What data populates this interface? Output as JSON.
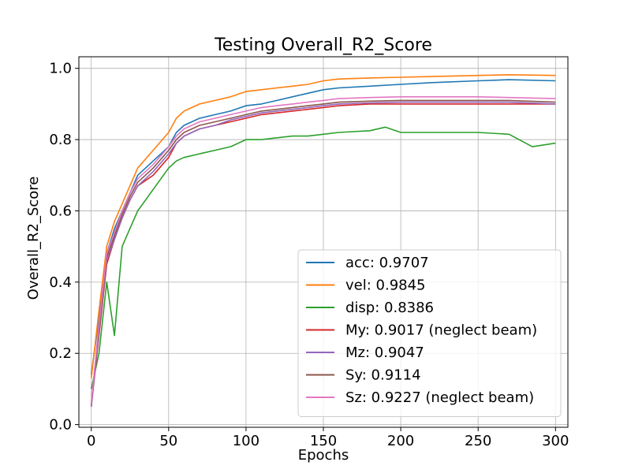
{
  "chart_data": {
    "type": "line",
    "title": "Testing Overall_R2_Score",
    "xlabel": "Epochs",
    "ylabel": "Overall_R2_Score",
    "xlim": [
      -8,
      308
    ],
    "ylim": [
      -0.0075,
      1.0325
    ],
    "xticks": [
      0,
      50,
      100,
      150,
      200,
      250,
      300
    ],
    "xtick_labels": [
      "0",
      "50",
      "100",
      "150",
      "200",
      "250",
      "300"
    ],
    "yticks": [
      0.0,
      0.2,
      0.4,
      0.6,
      0.8,
      1.0
    ],
    "ytick_labels": [
      "0.0",
      "0.2",
      "0.4",
      "0.6",
      "0.8",
      "1.0"
    ],
    "grid": true,
    "legend_position": "lower-right",
    "series": [
      {
        "name": "acc: 0.9707",
        "color": "#1f77b4",
        "x": [
          0,
          5,
          10,
          15,
          20,
          25,
          30,
          40,
          50,
          55,
          60,
          70,
          80,
          90,
          100,
          110,
          120,
          130,
          140,
          150,
          160,
          180,
          200,
          220,
          250,
          270,
          300
        ],
        "y": [
          0.14,
          0.3,
          0.48,
          0.55,
          0.6,
          0.65,
          0.7,
          0.74,
          0.78,
          0.82,
          0.84,
          0.86,
          0.87,
          0.88,
          0.895,
          0.9,
          0.91,
          0.92,
          0.93,
          0.94,
          0.945,
          0.95,
          0.955,
          0.96,
          0.965,
          0.968,
          0.965
        ]
      },
      {
        "name": "vel: 0.9845",
        "color": "#ff7f0e",
        "x": [
          0,
          5,
          10,
          15,
          20,
          25,
          30,
          40,
          50,
          55,
          60,
          70,
          80,
          90,
          100,
          110,
          120,
          130,
          140,
          150,
          160,
          180,
          200,
          220,
          250,
          270,
          300
        ],
        "y": [
          0.13,
          0.32,
          0.5,
          0.57,
          0.62,
          0.67,
          0.72,
          0.77,
          0.82,
          0.86,
          0.88,
          0.9,
          0.91,
          0.92,
          0.935,
          0.94,
          0.945,
          0.95,
          0.955,
          0.965,
          0.97,
          0.973,
          0.975,
          0.977,
          0.98,
          0.982,
          0.98
        ]
      },
      {
        "name": "disp: 0.8386",
        "color": "#2ca02c",
        "x": [
          0,
          5,
          10,
          15,
          20,
          25,
          30,
          40,
          50,
          55,
          60,
          70,
          80,
          90,
          100,
          110,
          120,
          130,
          140,
          150,
          160,
          180,
          190,
          200,
          220,
          250,
          270,
          285,
          300
        ],
        "y": [
          0.1,
          0.2,
          0.4,
          0.25,
          0.5,
          0.55,
          0.6,
          0.66,
          0.72,
          0.74,
          0.75,
          0.76,
          0.77,
          0.78,
          0.8,
          0.8,
          0.805,
          0.81,
          0.81,
          0.815,
          0.82,
          0.825,
          0.835,
          0.82,
          0.82,
          0.82,
          0.815,
          0.78,
          0.79
        ]
      },
      {
        "name": "My: 0.9017 (neglect beam)",
        "color": "#d62728",
        "x": [
          0,
          5,
          10,
          15,
          20,
          25,
          30,
          40,
          50,
          55,
          60,
          70,
          80,
          90,
          100,
          110,
          120,
          130,
          140,
          150,
          160,
          180,
          200,
          220,
          250,
          270,
          300
        ],
        "y": [
          0.05,
          0.25,
          0.45,
          0.52,
          0.58,
          0.63,
          0.67,
          0.7,
          0.75,
          0.79,
          0.81,
          0.83,
          0.84,
          0.85,
          0.86,
          0.87,
          0.875,
          0.88,
          0.885,
          0.89,
          0.895,
          0.9,
          0.9,
          0.9,
          0.9,
          0.9,
          0.9
        ]
      },
      {
        "name": "Mz: 0.9047",
        "color": "#9467bd",
        "x": [
          0,
          5,
          10,
          15,
          20,
          25,
          30,
          40,
          50,
          55,
          60,
          70,
          80,
          90,
          100,
          110,
          120,
          130,
          140,
          150,
          160,
          180,
          200,
          220,
          250,
          270,
          300
        ],
        "y": [
          0.05,
          0.26,
          0.46,
          0.52,
          0.58,
          0.63,
          0.67,
          0.71,
          0.76,
          0.79,
          0.81,
          0.83,
          0.84,
          0.855,
          0.865,
          0.875,
          0.88,
          0.885,
          0.89,
          0.895,
          0.9,
          0.903,
          0.905,
          0.905,
          0.905,
          0.905,
          0.9
        ]
      },
      {
        "name": "Sy: 0.9114",
        "color": "#8c564b",
        "x": [
          0,
          5,
          10,
          15,
          20,
          25,
          30,
          40,
          50,
          55,
          60,
          70,
          80,
          90,
          100,
          110,
          120,
          130,
          140,
          150,
          160,
          180,
          200,
          220,
          250,
          270,
          300
        ],
        "y": [
          0.06,
          0.27,
          0.47,
          0.53,
          0.59,
          0.64,
          0.68,
          0.72,
          0.77,
          0.8,
          0.82,
          0.84,
          0.85,
          0.86,
          0.87,
          0.88,
          0.885,
          0.89,
          0.895,
          0.9,
          0.905,
          0.908,
          0.91,
          0.91,
          0.91,
          0.91,
          0.905
        ]
      },
      {
        "name": "Sz: 0.9227 (neglect beam)",
        "color": "#e377c2",
        "x": [
          0,
          5,
          10,
          15,
          20,
          25,
          30,
          40,
          50,
          55,
          60,
          70,
          80,
          90,
          100,
          110,
          120,
          130,
          140,
          150,
          160,
          180,
          200,
          220,
          250,
          270,
          300
        ],
        "y": [
          0.06,
          0.28,
          0.48,
          0.54,
          0.6,
          0.65,
          0.69,
          0.73,
          0.78,
          0.81,
          0.83,
          0.85,
          0.86,
          0.87,
          0.88,
          0.89,
          0.895,
          0.9,
          0.905,
          0.91,
          0.915,
          0.918,
          0.92,
          0.92,
          0.92,
          0.918,
          0.915
        ]
      }
    ]
  }
}
